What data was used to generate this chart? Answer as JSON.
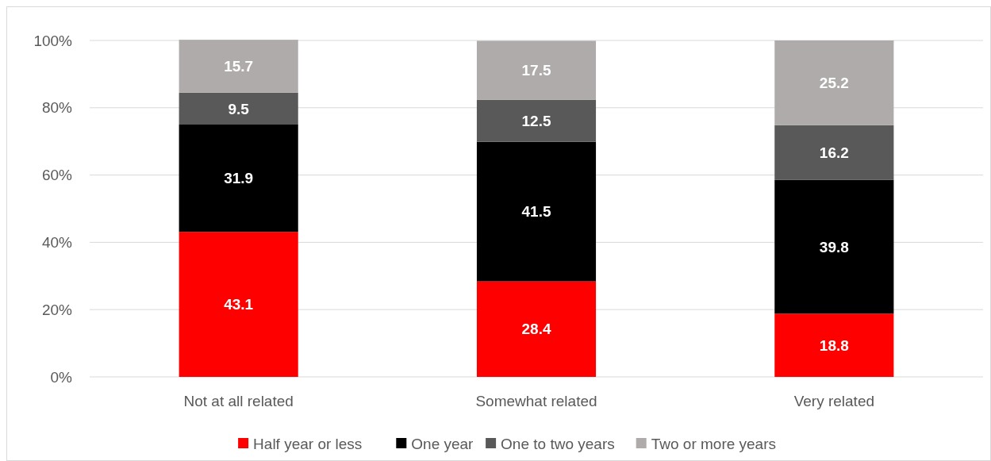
{
  "chart_data": {
    "type": "bar",
    "stacked": true,
    "categories": [
      "Not at all related",
      "Somewhat related",
      "Very related"
    ],
    "series": [
      {
        "name": "Half year or less",
        "color": "#ff0000",
        "values": [
          43.1,
          28.4,
          18.8
        ]
      },
      {
        "name": "One year",
        "color": "#000000",
        "values": [
          31.9,
          41.5,
          39.8
        ]
      },
      {
        "name": "One to two years",
        "color": "#595959",
        "values": [
          9.5,
          12.5,
          16.2
        ]
      },
      {
        "name": "Two or more years",
        "color": "#afabab",
        "values": [
          15.7,
          17.5,
          25.2
        ]
      }
    ],
    "ylim": [
      0,
      100
    ],
    "yticks": [
      {
        "value": 0,
        "label": "0%"
      },
      {
        "value": 20,
        "label": "20%"
      },
      {
        "value": 40,
        "label": "40%"
      },
      {
        "value": 60,
        "label": "60%"
      },
      {
        "value": 80,
        "label": "80%"
      },
      {
        "value": 100,
        "label": "100%"
      }
    ],
    "grid": "y",
    "legend": "bottom",
    "data_labels": true
  }
}
